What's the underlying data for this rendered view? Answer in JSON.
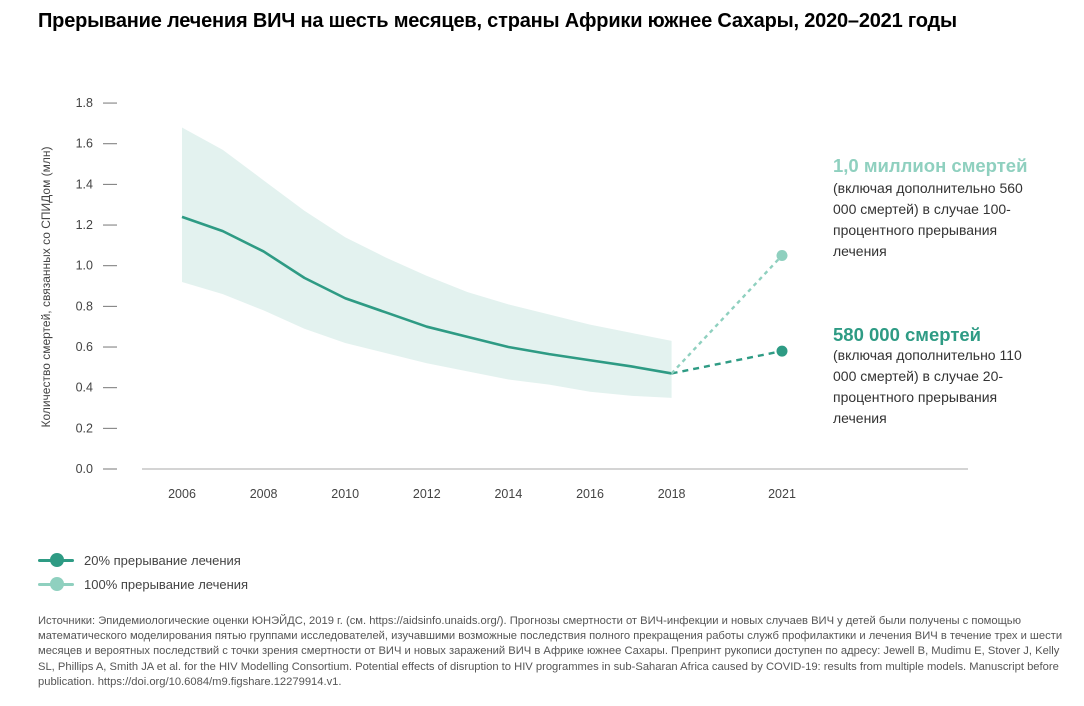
{
  "title": "Прерывание лечения ВИЧ на шесть месяцев, страны Африки южнее Сахары, 2020–2021 годы",
  "colors": {
    "dark": "#2e9b84",
    "light": "#8fd0bf",
    "band": "#e3f2ef",
    "axis": "#aaaaaa"
  },
  "chart_data": {
    "type": "line",
    "title": "Прерывание лечения ВИЧ на шесть месяцев, страны Африки южнее Сахары, 2020–2021 годы",
    "xlabel": "",
    "ylabel": "Количество смертей, связанных со СПИДом (млн)",
    "ylim": [
      0,
      1.8
    ],
    "yticks": [
      "0.0",
      "0.2",
      "0.4",
      "0.6",
      "0.8",
      "1.0",
      "1.2",
      "1.4",
      "1.6",
      "1.8"
    ],
    "xticks": [
      "2006",
      "2008",
      "2010",
      "2012",
      "2014",
      "2016",
      "2018",
      "2021"
    ],
    "historical": {
      "x": [
        2006,
        2007,
        2008,
        2009,
        2010,
        2011,
        2012,
        2013,
        2014,
        2015,
        2016,
        2017,
        2018
      ],
      "estimate": [
        1.24,
        1.17,
        1.07,
        0.94,
        0.84,
        0.77,
        0.7,
        0.65,
        0.6,
        0.565,
        0.535,
        0.505,
        0.47
      ],
      "upper": [
        1.68,
        1.57,
        1.42,
        1.27,
        1.14,
        1.04,
        0.95,
        0.87,
        0.81,
        0.76,
        0.71,
        0.67,
        0.63
      ],
      "lower": [
        0.92,
        0.86,
        0.78,
        0.69,
        0.62,
        0.57,
        0.52,
        0.48,
        0.44,
        0.415,
        0.38,
        0.36,
        0.35
      ]
    },
    "series": [
      {
        "name": "20% прерывание лечения",
        "x": [
          2018,
          2021
        ],
        "values": [
          0.47,
          0.58
        ],
        "color": "#2e9b84"
      },
      {
        "name": "100% прерывание лечения",
        "x": [
          2018,
          2021
        ],
        "values": [
          0.47,
          1.05
        ],
        "color": "#8fd0bf"
      }
    ],
    "legend_position": "bottom-left",
    "grid": false
  },
  "annotations": {
    "full": {
      "big": "1,0 миллион смертей",
      "rest": " (включая дополнительно 560 000 смертей) в случае 100-процентного прерывания лечения"
    },
    "partial": {
      "big": "580 000 смертей",
      "rest": "(включая дополнительно 110 000 смертей) в случае 20-процентного прерывания лечения"
    }
  },
  "legend": [
    {
      "label": "20% прерывание лечения",
      "color": "#2e9b84"
    },
    {
      "label": "100% прерывание лечения",
      "color": "#8fd0bf"
    }
  ],
  "sources": "Источники: Эпидемиологические оценки ЮНЭЙДС, 2019 г. (см. https://aidsinfo.unaids.org/). Прогнозы смертности от ВИЧ-инфекции и новых случаев ВИЧ у детей были получены с помощью математического моделирования пятью группами исследователей, изучавшими возможные последствия полного прекращения работы служб профилактики и лечения ВИЧ в течение трех и шести месяцев и вероятных последствий с точки зрения смертности от ВИЧ и новых заражений ВИЧ в Африке южнее Сахары. Препринт рукописи доступен по адресу: Jewell B, Mudimu E, Stover J, Kelly SL, Phillips A, Smith JA et al. for the HIV Modelling Consortium. Potential effects of disruption to HIV programmes in sub-Saharan Africa caused by COVID-19: results from multiple models. Manuscript before publication. https://doi.org/10.6084/m9.figshare.12279914.v1."
}
